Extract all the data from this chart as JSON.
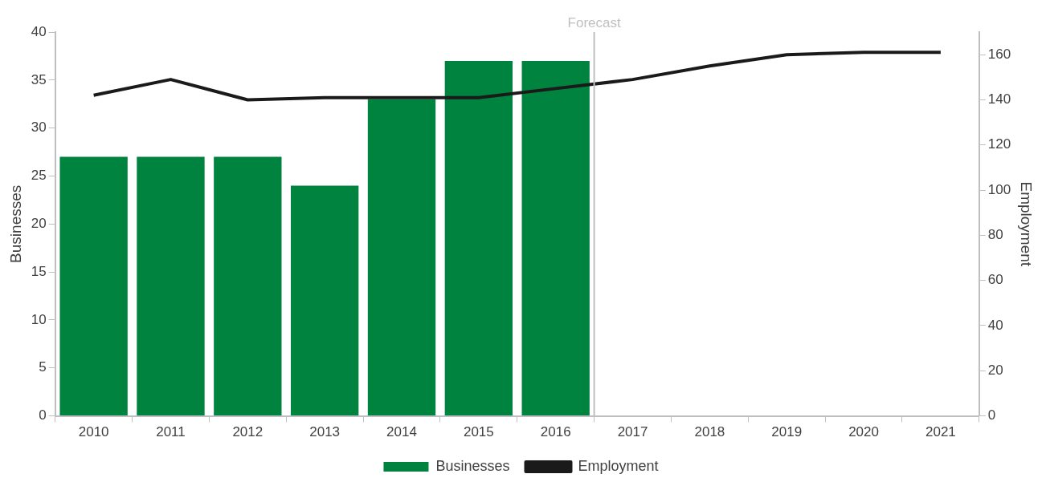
{
  "chart_data": {
    "type": "bar",
    "xlabel": null,
    "ylabel": "Businesses",
    "y2label": "Employment",
    "x": [
      2010,
      2011,
      2012,
      2013,
      2014,
      2015,
      2016,
      2017,
      2018,
      2019,
      2020,
      2021
    ],
    "xlim": [
      2009.5,
      2021.5
    ],
    "xticks": [
      2010,
      2011,
      2012,
      2013,
      2014,
      2015,
      2016,
      2017,
      2018,
      2019,
      2020,
      2021
    ],
    "series": [
      {
        "name": "Businesses",
        "color": "#00833e",
        "values": [
          27,
          27,
          27,
          24,
          33,
          37,
          37,
          null,
          null,
          null,
          null,
          null
        ]
      },
      {
        "name": "Employment",
        "type": "line",
        "axis": "y2",
        "color": "#1a1a1a",
        "values": [
          142,
          149,
          140,
          141,
          141,
          141,
          145,
          149,
          155,
          160,
          161,
          161
        ]
      }
    ],
    "ylim": [
      0,
      40
    ],
    "yticks": [
      0,
      5,
      10,
      15,
      20,
      25,
      30,
      35,
      40
    ],
    "y2lim": [
      0,
      170
    ],
    "y2ticks": [
      0,
      20,
      40,
      60,
      80,
      100,
      120,
      140,
      160
    ],
    "ref_lines": [
      {
        "axis": "x",
        "value": 2016.5,
        "label": "Forecast",
        "color": "#bfbfbf"
      }
    ],
    "grid": false,
    "legend": "bottom",
    "marker": "none"
  }
}
